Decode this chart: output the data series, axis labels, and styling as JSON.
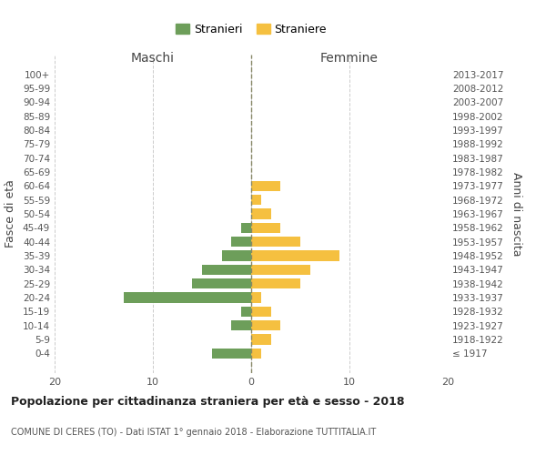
{
  "age_groups": [
    "100+",
    "95-99",
    "90-94",
    "85-89",
    "80-84",
    "75-79",
    "70-74",
    "65-69",
    "60-64",
    "55-59",
    "50-54",
    "45-49",
    "40-44",
    "35-39",
    "30-34",
    "25-29",
    "20-24",
    "15-19",
    "10-14",
    "5-9",
    "0-4"
  ],
  "birth_years": [
    "≤ 1917",
    "1918-1922",
    "1923-1927",
    "1928-1932",
    "1933-1937",
    "1938-1942",
    "1943-1947",
    "1948-1952",
    "1953-1957",
    "1958-1962",
    "1963-1967",
    "1968-1972",
    "1973-1977",
    "1978-1982",
    "1983-1987",
    "1988-1992",
    "1993-1997",
    "1998-2002",
    "2003-2007",
    "2008-2012",
    "2013-2017"
  ],
  "maschi": [
    0,
    0,
    0,
    0,
    0,
    0,
    0,
    0,
    0,
    0,
    0,
    1,
    2,
    3,
    5,
    6,
    13,
    1,
    2,
    0,
    4
  ],
  "femmine": [
    0,
    0,
    0,
    0,
    0,
    0,
    0,
    0,
    3,
    1,
    2,
    3,
    5,
    9,
    6,
    5,
    1,
    2,
    3,
    2,
    1
  ],
  "color_maschi": "#6d9e5a",
  "color_femmine": "#f5c040",
  "title": "Popolazione per cittadinanza straniera per età e sesso - 2018",
  "subtitle": "COMUNE DI CERES (TO) - Dati ISTAT 1° gennaio 2018 - Elaborazione TUTTITALIA.IT",
  "legend_maschi": "Stranieri",
  "legend_femmine": "Straniere",
  "xlabel_maschi": "Maschi",
  "xlabel_femmine": "Femmine",
  "ylabel_left": "Fasce di età",
  "ylabel_right": "Anni di nascita",
  "xlim": 20,
  "background_color": "#ffffff",
  "grid_color": "#cccccc"
}
